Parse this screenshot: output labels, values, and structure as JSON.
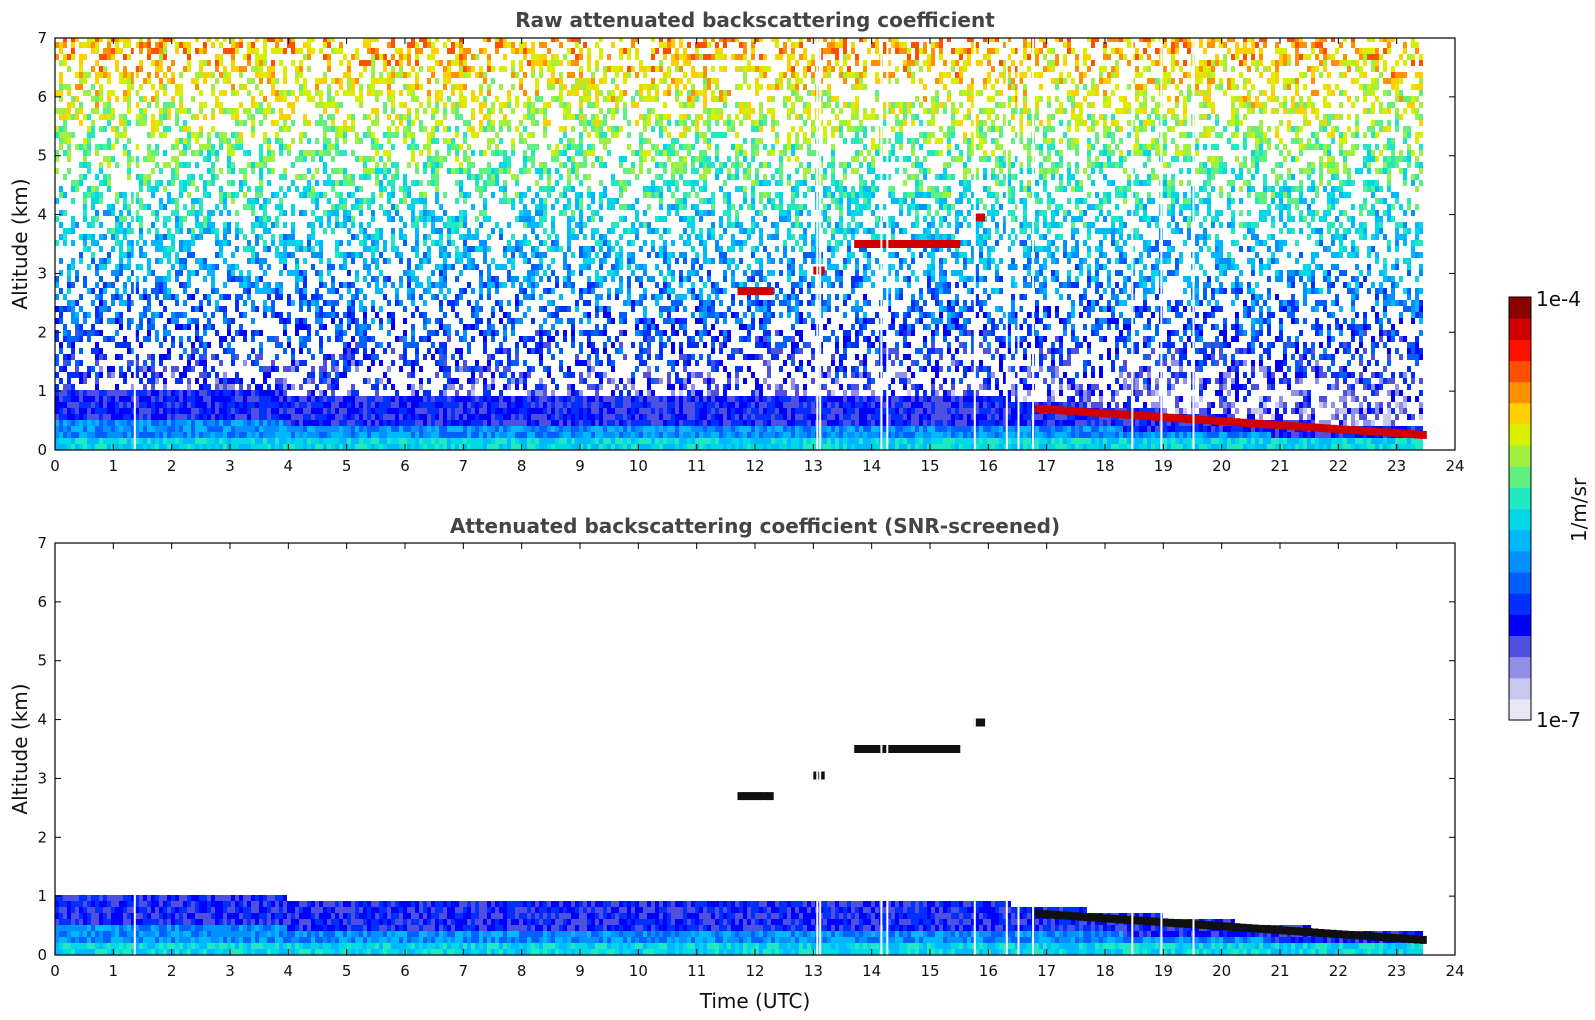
{
  "chart_data": [
    {
      "type": "heatmap",
      "title": "Raw attenuated backscattering coefficient",
      "xlabel": "",
      "ylabel": "Altitude (km)",
      "xlim": [
        0,
        24
      ],
      "ylim": [
        0,
        7
      ],
      "xticks": [
        "0",
        "1",
        "2",
        "3",
        "4",
        "5",
        "6",
        "7",
        "8",
        "9",
        "10",
        "11",
        "12",
        "13",
        "14",
        "15",
        "16",
        "17",
        "18",
        "19",
        "20",
        "21",
        "22",
        "23",
        "24"
      ],
      "yticks": [
        "0",
        "1",
        "2",
        "3",
        "4",
        "5",
        "6",
        "7"
      ],
      "data_end_time": 23.5,
      "boundary_layer_top_km": [
        [
          0,
          1.0
        ],
        [
          4,
          0.85
        ],
        [
          6,
          0.9
        ],
        [
          10,
          0.9
        ],
        [
          15,
          0.9
        ],
        [
          16,
          1.0
        ]
      ],
      "cloud_layers": [
        {
          "t_start": 11.7,
          "t_end": 12.3,
          "alt_km": 2.7
        },
        {
          "t_start": 13.0,
          "t_end": 13.15,
          "alt_km": 3.05
        },
        {
          "t_start": 13.7,
          "t_end": 15.5,
          "alt_km": 3.5
        },
        {
          "t_start": 15.75,
          "t_end": 15.9,
          "alt_km": 3.95
        },
        {
          "t_start": 16.8,
          "t_end": 23.5,
          "alt_km_start": 0.7,
          "alt_km_end": 0.25
        }
      ],
      "data_gaps_utc": [
        1.35,
        13.05,
        13.1,
        14.15,
        14.25,
        15.75,
        16.3,
        16.5,
        16.75,
        18.45,
        18.95,
        19.5
      ]
    },
    {
      "type": "heatmap",
      "title": "Attenuated backscattering coefficient (SNR-screened)",
      "xlabel": "Time (UTC)",
      "ylabel": "Altitude (km)",
      "xlim": [
        0,
        24
      ],
      "ylim": [
        0,
        7
      ],
      "xticks": [
        "0",
        "1",
        "2",
        "3",
        "4",
        "5",
        "6",
        "7",
        "8",
        "9",
        "10",
        "11",
        "12",
        "13",
        "14",
        "15",
        "16",
        "17",
        "18",
        "19",
        "20",
        "21",
        "22",
        "23",
        "24"
      ],
      "yticks": [
        "0",
        "1",
        "2",
        "3",
        "4",
        "5",
        "6",
        "7"
      ],
      "data_end_time": 23.5
    }
  ],
  "colorbar": {
    "label": "1/m/sr",
    "max_label": "1e-4",
    "min_label": "1e-7",
    "colors": [
      "#e8e8f5",
      "#c8c8f0",
      "#9090e8",
      "#5050e0",
      "#0000ff",
      "#0030ff",
      "#0060ff",
      "#0090ff",
      "#00b8ff",
      "#00d8e8",
      "#20e8c0",
      "#60f080",
      "#a0f040",
      "#d8f000",
      "#ffd000",
      "#ff9000",
      "#ff5000",
      "#ff1000",
      "#d00000",
      "#8b0000"
    ]
  }
}
